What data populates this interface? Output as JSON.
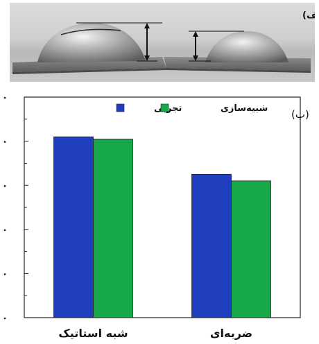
{
  "figure_a": {
    "label": "(الف)"
  },
  "chart_data": {
    "type": "bar",
    "panel_label": "(ب)",
    "categories": [
      "شبه استاتیک",
      "ضربه‌ای"
    ],
    "series": [
      {
        "name": "تجربی",
        "values": [
          0.82,
          0.65
        ],
        "color": "#1f3fbf"
      },
      {
        "name": "شبیه‌سازی",
        "values": [
          0.81,
          0.62
        ],
        "color": "#17a84a"
      }
    ],
    "ylim": [
      0,
      1
    ],
    "ytick_values": [
      0,
      0.2,
      0.4,
      0.6,
      0.8,
      1.0
    ],
    "grid": false,
    "legend_position": "top-center",
    "ylabel": "",
    "xlabel": ""
  }
}
